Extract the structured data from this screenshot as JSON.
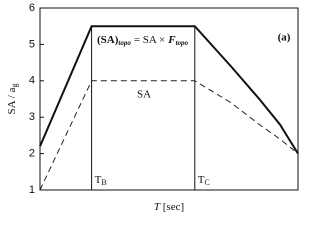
{
  "chart_data": {
    "type": "line",
    "panel_label": "(a)",
    "x_label": {
      "italic": "T",
      "rest": "[sec]"
    },
    "y_label": {
      "main": "SA / a",
      "sub": "g"
    },
    "xlim": [
      0,
      1
    ],
    "ylim": [
      1,
      6
    ],
    "yticks": [
      1,
      2,
      3,
      4,
      5,
      6
    ],
    "markers": [
      {
        "label": "T",
        "sub": "B",
        "x": 0.2
      },
      {
        "label": "T",
        "sub": "C",
        "x": 0.6
      }
    ],
    "series": [
      {
        "name": "SA",
        "color": "#222",
        "dash": true,
        "x": [
          0,
          0.2,
          0.6,
          0.74,
          0.85,
          0.93,
          1
        ],
        "values": [
          1,
          4,
          4,
          3.4,
          2.8,
          2.4,
          2.0
        ]
      },
      {
        "name": "(SA)",
        "sub": "topo",
        "eq": "= SA ×",
        "factor": "F",
        "factor_sub": "topo",
        "color": "#111",
        "dash": false,
        "x": [
          0,
          0.2,
          0.6,
          0.74,
          0.85,
          0.93,
          1
        ],
        "values": [
          2.2,
          5.5,
          5.5,
          4.4,
          3.5,
          2.8,
          2.0
        ]
      }
    ]
  }
}
